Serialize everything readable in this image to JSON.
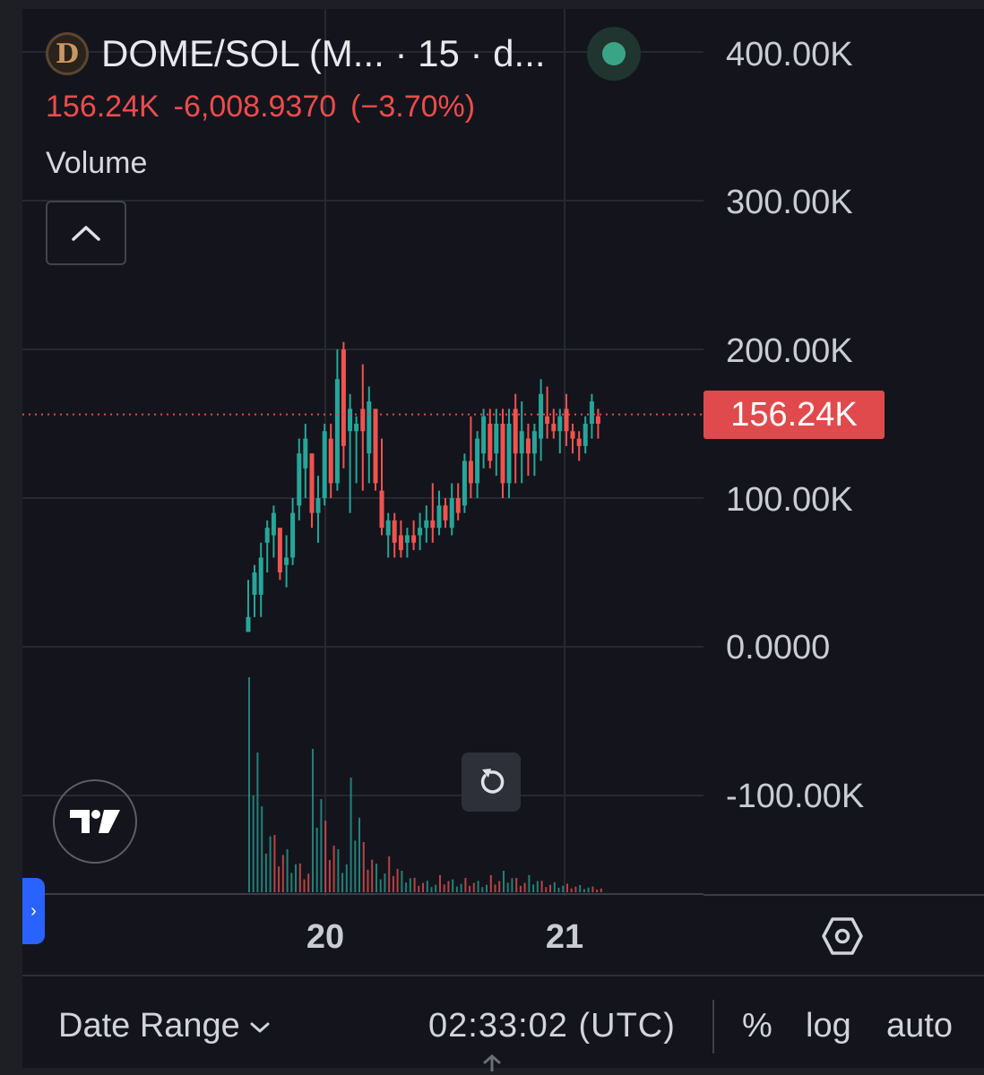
{
  "header": {
    "logo_letter": "D",
    "symbol": "DOME/SOL (M... · 15 · d...",
    "price": "156.24K",
    "change": "-6,008.9370",
    "change_pct": "(−3.70%)",
    "indicator": "Volume",
    "status_color": "#3aa586"
  },
  "chart_data": {
    "type": "candlestick",
    "y_ticks": [
      "400.00K",
      "300.00K",
      "200.00K",
      "100.00K",
      "0.0000",
      "-100.00K"
    ],
    "x_ticks": [
      "20",
      "21"
    ],
    "ylim": [
      -100000,
      400000
    ],
    "last_price_label": "156.24K",
    "last_price": 156240,
    "colors": {
      "up": "#26a69a",
      "down": "#ef5350",
      "volume_up": "#26a69a",
      "volume_down": "#ef5350"
    },
    "candles": [
      [
        20,
        45000,
        10000,
        10000,
        20000
      ],
      [
        20,
        55000,
        35000,
        20000,
        50000
      ],
      [
        21,
        70000,
        35000,
        20000,
        60000
      ],
      [
        21,
        85000,
        70000,
        50000,
        80000
      ],
      [
        22,
        95000,
        75000,
        60000,
        90000
      ],
      [
        22,
        80000,
        80000,
        45000,
        50000
      ],
      [
        23,
        75000,
        55000,
        40000,
        60000
      ],
      [
        23,
        100000,
        60000,
        55000,
        90000
      ],
      [
        24,
        140000,
        95000,
        85000,
        130000
      ],
      [
        24,
        150000,
        120000,
        100000,
        140000
      ],
      [
        25,
        130000,
        130000,
        80000,
        90000
      ],
      [
        25,
        115000,
        90000,
        70000,
        100000
      ],
      [
        26,
        150000,
        100000,
        95000,
        145000
      ],
      [
        26,
        150000,
        140000,
        100000,
        110000
      ],
      [
        27,
        200000,
        110000,
        105000,
        180000
      ],
      [
        27,
        205000,
        200000,
        120000,
        135000
      ],
      [
        28,
        170000,
        145000,
        90000,
        160000
      ],
      [
        28,
        155000,
        145000,
        110000,
        150000
      ],
      [
        29,
        190000,
        160000,
        105000,
        145000
      ],
      [
        29,
        175000,
        130000,
        110000,
        165000
      ],
      [
        30,
        160000,
        160000,
        105000,
        110000
      ],
      [
        30,
        140000,
        105000,
        75000,
        80000
      ],
      [
        31,
        90000,
        75000,
        60000,
        85000
      ],
      [
        31,
        90000,
        85000,
        60000,
        70000
      ],
      [
        32,
        85000,
        75000,
        60000,
        65000
      ],
      [
        32,
        80000,
        70000,
        60000,
        75000
      ],
      [
        33,
        85000,
        75000,
        65000,
        70000
      ],
      [
        33,
        90000,
        75000,
        65000,
        80000
      ],
      [
        34,
        95000,
        80000,
        70000,
        85000
      ],
      [
        34,
        110000,
        85000,
        70000,
        80000
      ],
      [
        35,
        105000,
        80000,
        75000,
        95000
      ],
      [
        35,
        100000,
        95000,
        80000,
        85000
      ],
      [
        36,
        110000,
        80000,
        75000,
        100000
      ],
      [
        36,
        110000,
        100000,
        85000,
        90000
      ],
      [
        37,
        130000,
        95000,
        90000,
        125000
      ],
      [
        37,
        155000,
        125000,
        100000,
        110000
      ],
      [
        38,
        145000,
        110000,
        100000,
        140000
      ],
      [
        38,
        160000,
        130000,
        120000,
        155000
      ],
      [
        39,
        160000,
        150000,
        120000,
        125000
      ],
      [
        39,
        160000,
        130000,
        115000,
        150000
      ],
      [
        40,
        160000,
        150000,
        100000,
        110000
      ],
      [
        40,
        160000,
        110000,
        100000,
        150000
      ],
      [
        41,
        170000,
        160000,
        110000,
        130000
      ],
      [
        41,
        165000,
        130000,
        110000,
        145000
      ],
      [
        42,
        150000,
        140000,
        115000,
        130000
      ],
      [
        42,
        150000,
        130000,
        115000,
        145000
      ],
      [
        43,
        180000,
        140000,
        125000,
        170000
      ],
      [
        43,
        175000,
        155000,
        140000,
        150000
      ],
      [
        44,
        160000,
        150000,
        140000,
        145000
      ],
      [
        44,
        160000,
        145000,
        130000,
        155000
      ],
      [
        45,
        170000,
        160000,
        135000,
        145000
      ],
      [
        45,
        150000,
        145000,
        130000,
        140000
      ],
      [
        46,
        145000,
        140000,
        125000,
        135000
      ],
      [
        46,
        155000,
        135000,
        130000,
        150000
      ],
      [
        47,
        170000,
        150000,
        140000,
        165000
      ],
      [
        47,
        160000,
        155000,
        140000,
        150000
      ]
    ],
    "volume": [
      [
        20,
        150000,
        "up"
      ],
      [
        21,
        60000,
        "up"
      ],
      [
        22,
        40000,
        "down"
      ],
      [
        23,
        30000,
        "up"
      ],
      [
        24,
        20000,
        "down"
      ],
      [
        25,
        100000,
        "up"
      ],
      [
        26,
        50000,
        "down"
      ],
      [
        27,
        30000,
        "up"
      ],
      [
        28,
        80000,
        "up"
      ],
      [
        29,
        35000,
        "down"
      ],
      [
        30,
        20000,
        "up"
      ],
      [
        31,
        25000,
        "down"
      ],
      [
        32,
        15000,
        "up"
      ],
      [
        33,
        10000,
        "down"
      ],
      [
        34,
        8000,
        "up"
      ],
      [
        35,
        12000,
        "down"
      ],
      [
        36,
        9000,
        "up"
      ],
      [
        37,
        10000,
        "down"
      ],
      [
        38,
        8000,
        "up"
      ],
      [
        39,
        12000,
        "down"
      ],
      [
        40,
        15000,
        "up"
      ],
      [
        41,
        10000,
        "down"
      ],
      [
        42,
        12000,
        "up"
      ],
      [
        43,
        8000,
        "down"
      ],
      [
        44,
        7000,
        "up"
      ],
      [
        45,
        6000,
        "down"
      ],
      [
        46,
        5000,
        "up"
      ],
      [
        47,
        4000,
        "down"
      ]
    ]
  },
  "footer": {
    "date_range": "Date Range",
    "clock": "02:33:02 (UTC)",
    "percent": "%",
    "log": "log",
    "auto": "auto"
  }
}
